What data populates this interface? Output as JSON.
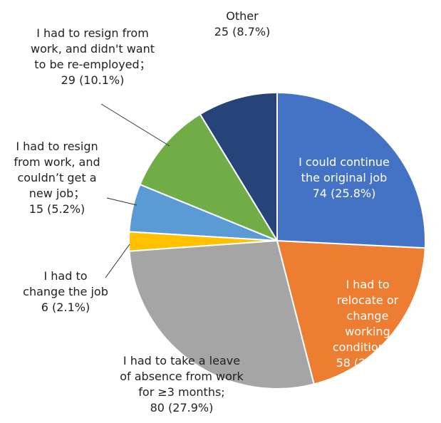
{
  "chart_data": {
    "type": "pie",
    "categories": [
      "I could continue\nthe original job",
      "I had to relocate or\nchange working\nconditions；",
      "I had to take a leave\nof absence from work\nfor ≥3 months;",
      "I had to\nchange the job",
      "I had to resign\nfrom work, and\ncouldn’t get a\nnew job；",
      "I had to resign from\nwork, and didn't want\nto be re-employed；",
      "Other"
    ],
    "values": [
      74,
      58,
      80,
      6,
      15,
      29,
      25
    ],
    "value_labels": [
      "74 (25.8%)",
      "58 (20.2%)",
      "80 (27.9%)",
      "6 (2.1%)",
      "15 (5.2%)",
      "29 (10.1%)",
      "25 (8.7%)"
    ],
    "colors": [
      "#4472c4",
      "#ed7d31",
      "#a5a5a5",
      "#ffc000",
      "#5b9bd5",
      "#70ad47",
      "#264478"
    ]
  }
}
